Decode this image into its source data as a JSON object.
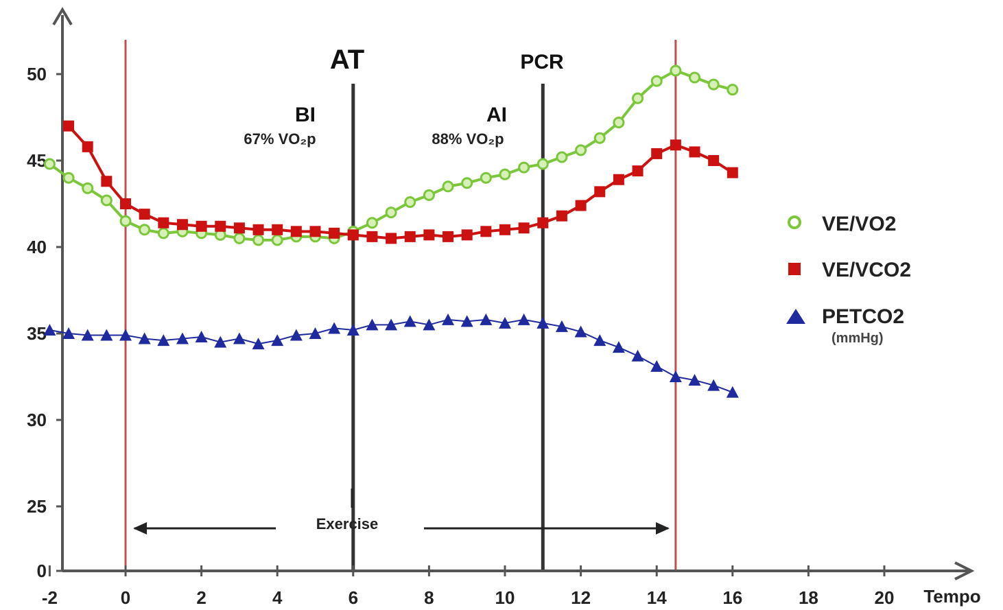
{
  "chart_data": {
    "type": "line",
    "xlabel": "Tempo",
    "x_ticks": [
      "-2",
      "0",
      "2",
      "4",
      "6",
      "8",
      "10",
      "12",
      "14",
      "16",
      "18",
      "20"
    ],
    "y_ticks": [
      "0",
      "25",
      "30",
      "35",
      "40",
      "45",
      "50"
    ],
    "xlim": [
      -2,
      22
    ],
    "ylim_note": "broken axis: 0 then 25 to 50",
    "series": [
      {
        "name": "VE/VO2",
        "color": "#7bc63a",
        "marker": "circle",
        "x": [
          -2,
          -1.5,
          -1,
          -0.5,
          0,
          0.5,
          1,
          1.5,
          2,
          2.5,
          3,
          3.5,
          4,
          4.5,
          5,
          5.5,
          6,
          6.5,
          7,
          7.5,
          8,
          8.5,
          9,
          9.5,
          10,
          10.5,
          11,
          11.5,
          12,
          12.5,
          13,
          13.5,
          14,
          14.5,
          15,
          15.5,
          16
        ],
        "values": [
          44.8,
          44.0,
          43.4,
          42.7,
          41.5,
          41.0,
          40.8,
          40.9,
          40.8,
          40.7,
          40.5,
          40.4,
          40.4,
          40.6,
          40.6,
          40.5,
          40.9,
          41.4,
          42.0,
          42.6,
          43.0,
          43.5,
          43.7,
          44.0,
          44.2,
          44.6,
          44.8,
          45.2,
          45.6,
          46.3,
          47.2,
          48.6,
          49.6,
          50.2,
          49.8,
          49.4,
          49.1
        ]
      },
      {
        "name": "VE/VCO2",
        "color": "#cc1111",
        "marker": "square",
        "x": [
          -1.5,
          -1,
          -0.5,
          0,
          0.5,
          1,
          1.5,
          2,
          2.5,
          3,
          3.5,
          4,
          4.5,
          5,
          5.5,
          6,
          6.5,
          7,
          7.5,
          8,
          8.5,
          9,
          9.5,
          10,
          10.5,
          11,
          11.5,
          12,
          12.5,
          13,
          13.5,
          14,
          14.5,
          15,
          15.5,
          16
        ],
        "values": [
          47.0,
          45.8,
          43.8,
          42.5,
          41.9,
          41.4,
          41.3,
          41.2,
          41.2,
          41.1,
          41.0,
          41.0,
          40.9,
          40.9,
          40.8,
          40.7,
          40.6,
          40.5,
          40.6,
          40.7,
          40.6,
          40.7,
          40.9,
          41.0,
          41.1,
          41.4,
          41.8,
          42.4,
          43.2,
          43.9,
          44.4,
          45.4,
          45.9,
          45.5,
          45.0,
          44.3
        ]
      },
      {
        "name": "PETCO2",
        "unit": "(mmHg)",
        "color": "#1f2a9e",
        "marker": "triangle",
        "x": [
          -2,
          -1.5,
          -1,
          -0.5,
          0,
          0.5,
          1,
          1.5,
          2,
          2.5,
          3,
          3.5,
          4,
          4.5,
          5,
          5.5,
          6,
          6.5,
          7,
          7.5,
          8,
          8.5,
          9,
          9.5,
          10,
          10.5,
          11,
          11.5,
          12,
          12.5,
          13,
          13.5,
          14,
          14.5,
          15,
          15.5,
          16
        ],
        "values": [
          35.2,
          35.0,
          34.9,
          34.9,
          34.9,
          34.7,
          34.6,
          34.7,
          34.8,
          34.5,
          34.7,
          34.4,
          34.6,
          34.9,
          35.0,
          35.3,
          35.2,
          35.5,
          35.5,
          35.7,
          35.5,
          35.8,
          35.7,
          35.8,
          35.6,
          35.8,
          35.6,
          35.4,
          35.1,
          34.6,
          34.2,
          33.7,
          33.1,
          32.5,
          32.3,
          32.0,
          31.6
        ]
      }
    ],
    "vlines": [
      {
        "x": 0,
        "color": "#c0504d",
        "kind": "exercise-start"
      },
      {
        "x": 6,
        "color": "#333333",
        "kind": "AT"
      },
      {
        "x": 11,
        "color": "#333333",
        "kind": "PCR"
      },
      {
        "x": 14.5,
        "color": "#c0504d",
        "kind": "exercise-end"
      }
    ],
    "annotations": {
      "at": "AT",
      "pcr": "PCR",
      "bi": "BI",
      "bi_pct": "67% VO₂p",
      "ai": "AI",
      "ai_pct": "88% VO₂p",
      "exercise": "Exercise"
    },
    "legend_position": "right"
  }
}
